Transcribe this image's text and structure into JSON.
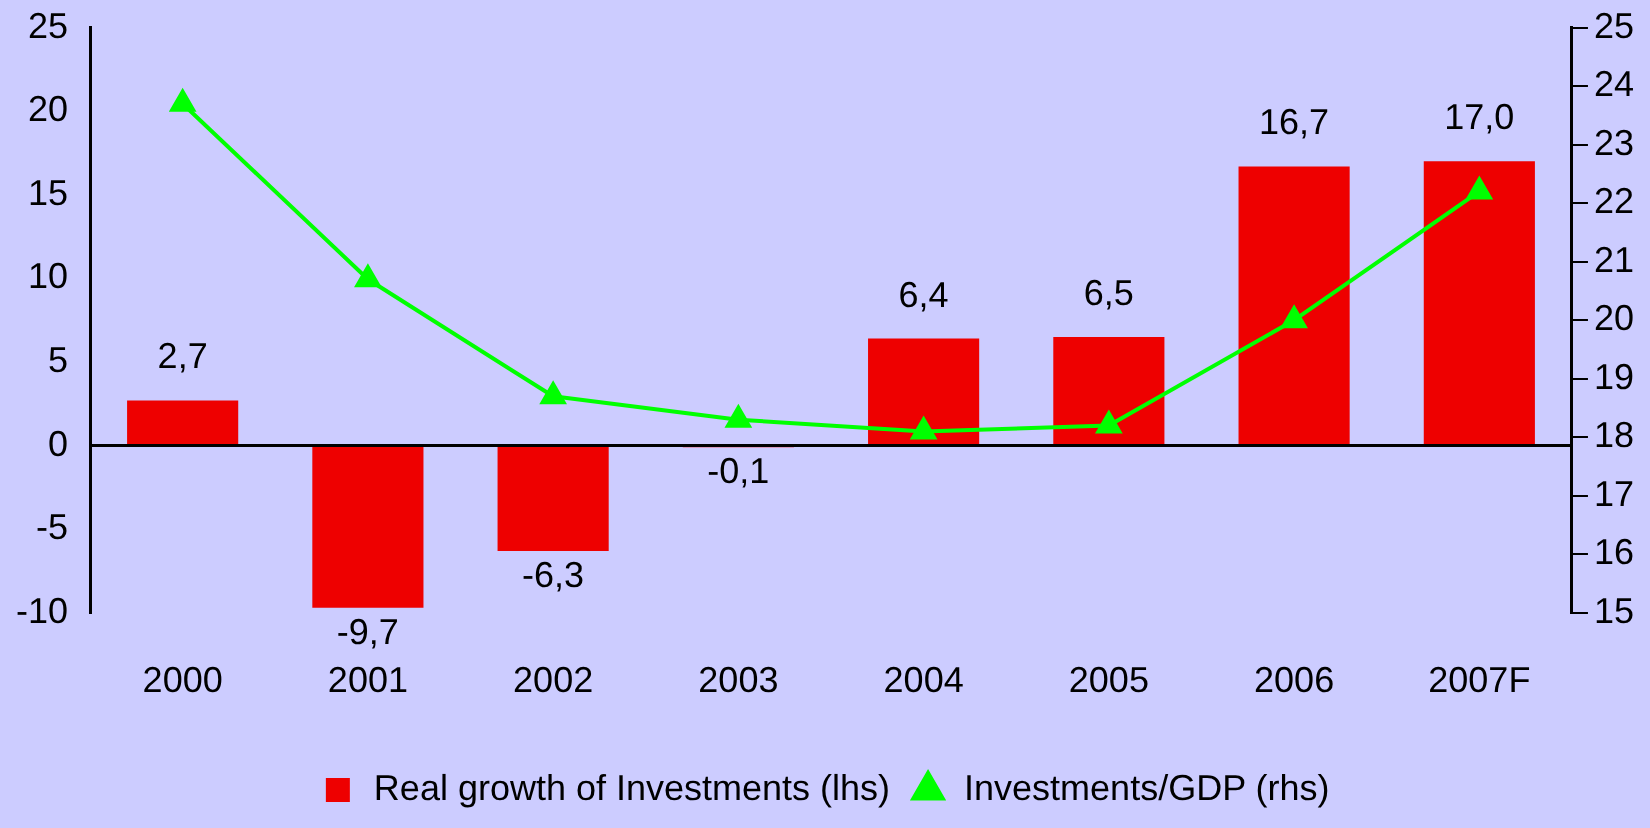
{
  "chart_data": {
    "type": "bar",
    "categories": [
      "2000",
      "2001",
      "2002",
      "2003",
      "2004",
      "2005",
      "2006",
      "2007F"
    ],
    "series": [
      {
        "name": "Real growth of Investments (lhs)",
        "color": "#ee0000",
        "values": [
          2.7,
          -9.7,
          -6.3,
          -0.1,
          6.4,
          6.5,
          16.7,
          17.0
        ],
        "value_labels": [
          "2,7",
          "-9,7",
          "-6,3",
          "-0,1",
          "6,4",
          "6,5",
          "16,7",
          "17,0"
        ]
      },
      {
        "name": "Investments/GDP (rhs)",
        "type": "line",
        "axis": "y2",
        "color": "#00ff00",
        "marker": "triangle",
        "values": [
          23.7,
          20.7,
          18.7,
          18.3,
          18.1,
          18.2,
          20.0,
          22.2
        ]
      }
    ],
    "ylim": [
      -10,
      25
    ],
    "yticks": [
      -10,
      -5,
      0,
      5,
      10,
      15,
      20,
      25
    ],
    "y2lim": [
      15,
      25
    ],
    "y2ticks": [
      15,
      16,
      17,
      18,
      19,
      20,
      21,
      22,
      23,
      24,
      25
    ],
    "legend": "bottom"
  }
}
